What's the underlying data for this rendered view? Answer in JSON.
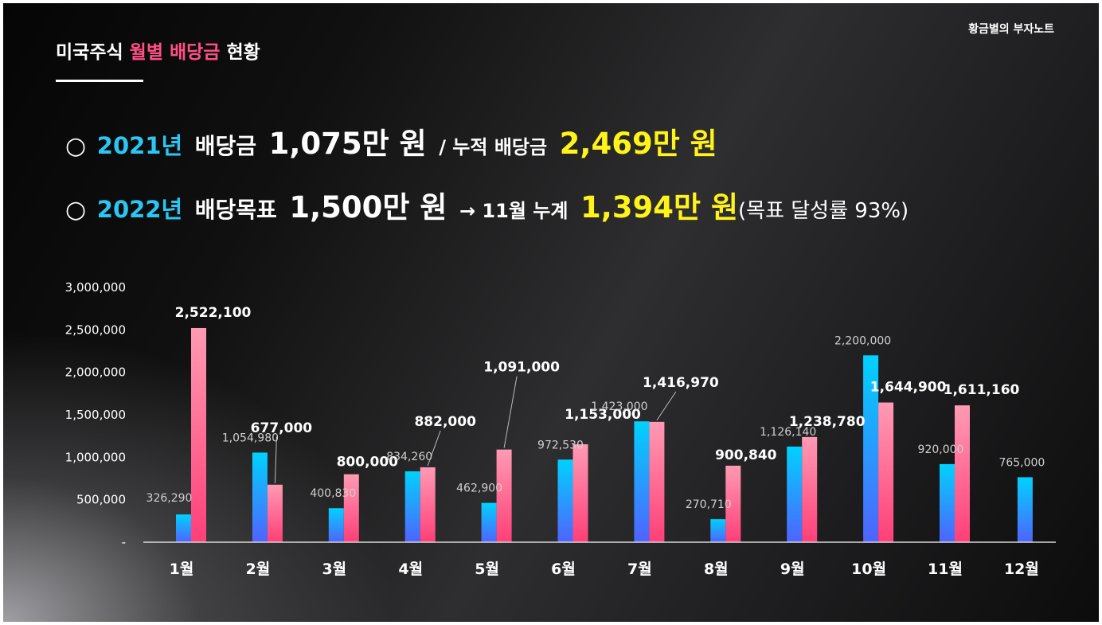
{
  "brand": "황금별의 부자노트",
  "title": {
    "part1": "미국주식",
    "highlight": "월별 배당금",
    "part2": "현황"
  },
  "summary": {
    "line1": {
      "bullet": "○",
      "year": "2021년",
      "label": "배당금",
      "amount": "1,075만 원",
      "separator": "/ 누적 배당금",
      "cumulative": "2,469만 원"
    },
    "line2": {
      "bullet": "○",
      "year": "2022년",
      "label": "배당목표",
      "amount": "1,500만 원",
      "arrow_label": "→ 11월 누계",
      "cumulative": "1,394만 원",
      "note": "(목표 달성률 93%)"
    }
  },
  "colors": {
    "blue_top": "#00d2ff",
    "blue_bottom": "#4f63ff",
    "pink_top": "#ff9ab4",
    "pink_bottom": "#ff3f78",
    "accent_yellow": "#fff31a",
    "accent_cyan": "#2bc6f3",
    "title_pink": "#ff4f86"
  },
  "chart_data": {
    "type": "bar",
    "categories": [
      "1월",
      "2월",
      "3월",
      "4월",
      "5월",
      "6월",
      "7월",
      "8월",
      "9월",
      "10월",
      "11월",
      "12월"
    ],
    "series": [
      {
        "name": "2021",
        "color": "blue",
        "values": [
          326290,
          1054980,
          400830,
          834260,
          462900,
          972530,
          1423000,
          270710,
          1126140,
          2200000,
          920000,
          765000
        ],
        "labels": [
          "326,290",
          "1,054,980",
          "400,830",
          "834,260",
          "462,900",
          "972,530",
          "1,423,000",
          "270,710",
          "1,126,140",
          "2,200,000",
          "920,000",
          "765,000"
        ]
      },
      {
        "name": "2022",
        "color": "pink",
        "values": [
          2522100,
          677000,
          800000,
          882000,
          1091000,
          1153000,
          1416970,
          900840,
          1238780,
          1644900,
          1611160,
          null
        ],
        "labels": [
          "2,522,100",
          "677,000",
          "800,000",
          "882,000",
          "1,091,000",
          "1,153,000",
          "1,416,970",
          "900,840",
          "1,238,780",
          "1,644,900",
          "1,611,160",
          ""
        ]
      }
    ],
    "y_ticks": [
      "-",
      "500,000",
      "1,000,000",
      "1,500,000",
      "2,000,000",
      "2,500,000",
      "3,000,000"
    ],
    "ylim": [
      0,
      3000000
    ],
    "title": "",
    "xlabel": "",
    "ylabel": "",
    "legend": "none",
    "grid": false
  }
}
